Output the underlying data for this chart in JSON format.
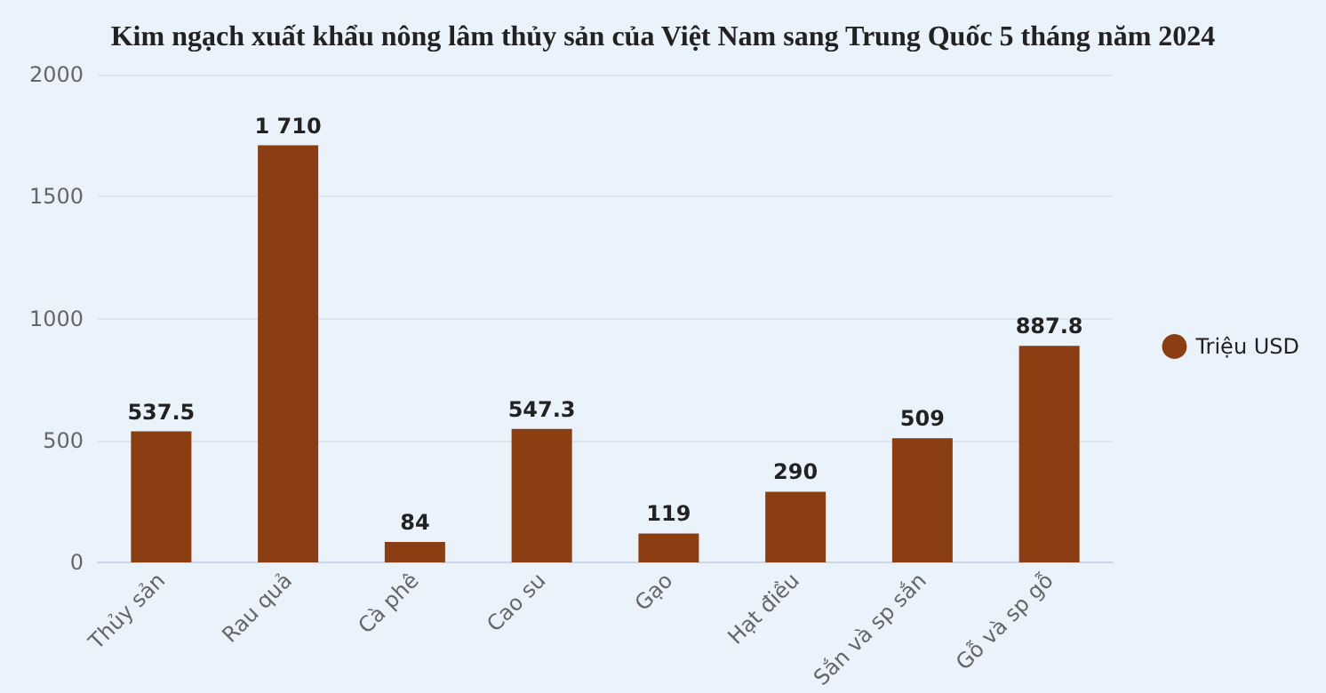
{
  "chart_data": {
    "type": "bar",
    "title": "Kim ngạch xuất khẩu nông lâm thủy sản của Việt Nam sang Trung Quốc 5 tháng năm 2024",
    "categories": [
      "Thủy sản",
      "Rau quả",
      "Cà phê",
      "Cao su",
      "Gạo",
      "Hạt điều",
      "Sắn và sp sắn",
      "Gỗ và sp gỗ"
    ],
    "series": [
      {
        "name": "Triệu USD",
        "color": "#8b3e12",
        "values": [
          537.5,
          1710,
          84,
          547.3,
          119,
          290,
          509,
          887.8
        ],
        "value_labels": [
          "537.5",
          "1 710",
          "84",
          "547.3",
          "119",
          "290",
          "509",
          "887.8"
        ]
      }
    ],
    "ylim": [
      0,
      2000
    ],
    "yticks": [
      0,
      500,
      1000,
      1500,
      2000
    ],
    "grid": "y",
    "legend": "right"
  }
}
